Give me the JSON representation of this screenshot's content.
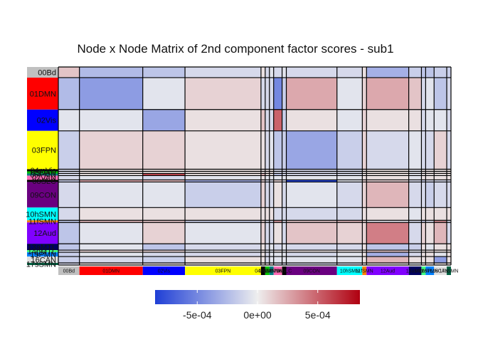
{
  "chart_data": {
    "type": "heatmap",
    "title": "Node x Node Matrix of 2nd component factor scores - sub1",
    "networks": [
      {
        "label": "00Bd",
        "size": 5,
        "color": "#c0c0c0"
      },
      {
        "label": "01DMN",
        "size": 15,
        "color": "#ff0000"
      },
      {
        "label": "02Vis",
        "size": 10,
        "color": "#0000ff"
      },
      {
        "label": "03FPN",
        "size": 18,
        "color": "#ffff00"
      },
      {
        "label": "04mVis",
        "size": 1,
        "color": "#000000"
      },
      {
        "label": "05DAN",
        "size": 1,
        "color": "#00c000"
      },
      {
        "label": "06PMN",
        "size": 1,
        "color": "#008080"
      },
      {
        "label": "07VAN",
        "size": 2,
        "color": "#ff69b4"
      },
      {
        "label": "08SLC",
        "size": 1,
        "color": "#000000"
      },
      {
        "label": "09CON",
        "size": 12,
        "color": "#6a0080"
      },
      {
        "label": "10hSMN",
        "size": 6,
        "color": "#00ffff"
      },
      {
        "label": "11fSMN",
        "size": 1,
        "color": "#ff8000"
      },
      {
        "label": "12Aud",
        "size": 10,
        "color": "#8000ff"
      },
      {
        "label": "13aMTL",
        "size": 3,
        "color": "#000060"
      },
      {
        "label": "14pMTL",
        "size": 1,
        "color": "#40ff80"
      },
      {
        "label": "15PMN",
        "size": 2,
        "color": "#0080ff"
      },
      {
        "label": "16CAN",
        "size": 3,
        "color": "#e0e0e0"
      },
      {
        "label": "17sSMN",
        "size": 1,
        "color": "#006040"
      }
    ],
    "values": [
      [
        1.5,
        -2.5,
        -2.0,
        -1.0,
        0.5,
        -1.0,
        -0.5,
        -1.0,
        -0.5,
        -1.0,
        -1.0,
        0.5,
        -3.0,
        -1.5,
        -2.0,
        -2.0,
        -1.5,
        -1.5
      ],
      [
        -2.5,
        -4.0,
        -0.5,
        1.0,
        -1.0,
        -1.0,
        -1.0,
        -5.0,
        -1.5,
        2.5,
        -0.5,
        1.0,
        2.5,
        1.5,
        -1.0,
        -0.5,
        -2.0,
        -1.0
      ],
      [
        -0.5,
        -0.5,
        -3.5,
        0.5,
        1.5,
        -1.0,
        -1.0,
        5.0,
        -1.5,
        0.5,
        -0.5,
        1.0,
        0.5,
        0.5,
        -1.0,
        -0.5,
        -0.5,
        -1.0
      ],
      [
        -1.5,
        1.0,
        1.0,
        0.5,
        0.5,
        -1.0,
        -0.5,
        -2.0,
        -1.5,
        -3.5,
        -1.5,
        1.0,
        -1.0,
        -0.5,
        -1.0,
        -1.0,
        1.0,
        -1.0
      ],
      [
        -1.0,
        0.5,
        0.5,
        0.5,
        0.5,
        0.5,
        0.5,
        -1.0,
        -1.0,
        -1.0,
        -1.0,
        0.5,
        0.5,
        -0.5,
        0.5,
        0.5,
        0.5,
        0.5
      ],
      [
        -1.0,
        0.5,
        0.5,
        0.5,
        0.5,
        0.5,
        0.5,
        -1.0,
        -1.0,
        -1.0,
        -1.0,
        0.5,
        0.5,
        -0.5,
        0.5,
        0.5,
        0.5,
        0.5
      ],
      [
        -1.0,
        0.5,
        6.0,
        0.5,
        2.0,
        0.5,
        0.5,
        -2.0,
        -1.0,
        -1.0,
        -1.0,
        0.5,
        0.5,
        -0.5,
        0.5,
        0.5,
        0.5,
        0.5
      ],
      [
        -1.0,
        -0.5,
        -1.0,
        -0.5,
        0.5,
        -0.5,
        -0.5,
        -0.5,
        -0.5,
        -0.5,
        -0.5,
        0.5,
        0.5,
        -0.5,
        0.5,
        0.5,
        0.5,
        0.5
      ],
      [
        -1.5,
        2.5,
        2.0,
        -3.0,
        1.0,
        -1.0,
        -1.0,
        1.0,
        -1.0,
        -8.0,
        -0.5,
        1.0,
        1.0,
        -1.0,
        -1.5,
        -1.0,
        -1.0,
        -1.0
      ],
      [
        -1.0,
        -0.5,
        -0.5,
        -1.5,
        1.0,
        -1.0,
        -1.0,
        0.5,
        -1.0,
        -0.5,
        -1.0,
        1.0,
        2.0,
        -1.0,
        -1.0,
        -1.5,
        -1.0,
        -1.0
      ],
      [
        -1.0,
        0.5,
        0.5,
        0.5,
        0.5,
        0.5,
        0.5,
        -1.0,
        -1.0,
        -1.0,
        -1.0,
        0.5,
        0.5,
        -0.5,
        0.5,
        0.5,
        0.5,
        0.5
      ],
      [
        -2.0,
        2.0,
        1.5,
        -1.5,
        1.0,
        -1.0,
        -1.0,
        3.0,
        -1.0,
        1.5,
        2.0,
        1.0,
        -0.5,
        -1.0,
        -1.5,
        -1.0,
        3.5,
        -1.0
      ],
      [
        -2.0,
        -0.5,
        1.0,
        -0.5,
        1.0,
        -1.0,
        -1.0,
        0.5,
        -1.0,
        1.5,
        1.0,
        1.0,
        4.0,
        -1.0,
        1.0,
        0.5,
        2.0,
        -1.0
      ],
      [
        -2.0,
        -0.5,
        -2.0,
        -1.0,
        0.5,
        -1.0,
        -0.5,
        -1.0,
        -0.5,
        -1.0,
        -1.0,
        0.5,
        -2.0,
        -1.5,
        0.5,
        -0.5,
        0.5,
        0.5
      ],
      [
        -1.0,
        1.0,
        1.0,
        -0.5,
        0.5,
        -0.5,
        -0.5,
        0.5,
        -0.5,
        0.5,
        0.5,
        0.5,
        1.5,
        -0.5,
        0.5,
        0.5,
        0.5,
        0.5
      ],
      [
        -1.5,
        -0.5,
        -1.0,
        -1.0,
        0.5,
        -1.0,
        -0.5,
        -0.5,
        -0.5,
        -1.0,
        -0.5,
        0.5,
        -3.0,
        -1.0,
        0.5,
        0.5,
        -0.5,
        0.5
      ],
      [
        -1.5,
        -1.0,
        -1.5,
        0.5,
        0.5,
        -1.0,
        -0.5,
        -0.5,
        -0.5,
        -0.5,
        -0.5,
        0.5,
        2.0,
        0.5,
        0.5,
        0.5,
        -4.0,
        0.5
      ],
      [
        -1.0,
        0.5,
        0.5,
        0.5,
        0.5,
        0.5,
        0.5,
        -1.0,
        -1.0,
        -1.0,
        -1.0,
        0.5,
        0.5,
        -0.5,
        0.5,
        0.5,
        0.5,
        0.5
      ]
    ],
    "value_scale": 0.0001,
    "color_range": [
      -0.00085,
      0.00085
    ],
    "colorbar": {
      "ticks": [
        -0.0005,
        0.0,
        0.0005
      ],
      "tick_labels": [
        "-5e-04",
        "0e+00",
        "5e-04"
      ],
      "colors": [
        "#1f3fd6",
        "#eeeeee",
        "#b00010"
      ]
    }
  }
}
